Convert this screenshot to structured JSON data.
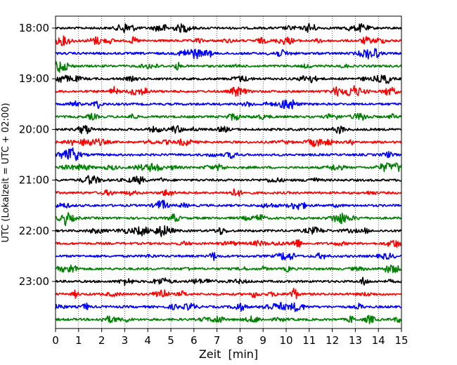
{
  "chart_data": {
    "type": "line",
    "title": "",
    "xlabel": "Zeit  [min]",
    "ylabel": "UTC (Lokalzeit = UTC + 02:00)",
    "xlim": [
      0,
      15
    ],
    "x_ticks": [
      0,
      1,
      2,
      3,
      4,
      5,
      6,
      7,
      8,
      9,
      10,
      11,
      12,
      13,
      14,
      15
    ],
    "y_tick_labels": [
      "18:00",
      "19:00",
      "20:00",
      "21:00",
      "22:00",
      "23:00"
    ],
    "trace_start_times": [
      "18:00",
      "18:15",
      "18:30",
      "18:45",
      "19:00",
      "19:15",
      "19:30",
      "19:45",
      "20:00",
      "20:15",
      "20:30",
      "20:45",
      "21:00",
      "21:15",
      "21:30",
      "21:45",
      "22:00",
      "22:15",
      "22:30",
      "22:45",
      "23:00",
      "23:15",
      "23:30",
      "23:45"
    ],
    "trace_colors": [
      "#000000",
      "#ff0000",
      "#0000ff",
      "#008000"
    ],
    "vertical_grid": "dotted",
    "legend": "none"
  }
}
